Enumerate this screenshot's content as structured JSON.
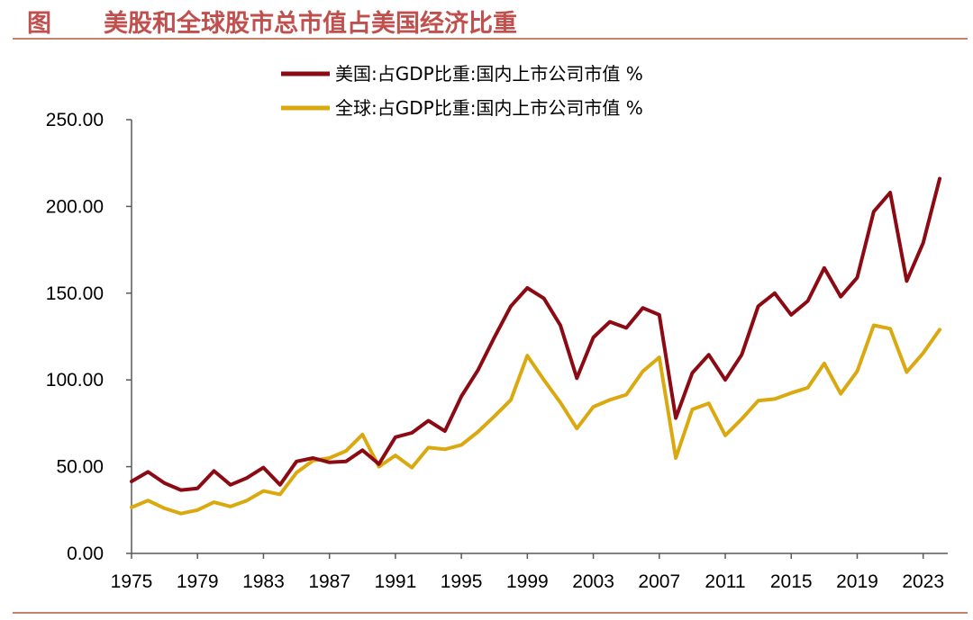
{
  "header": {
    "label": "图",
    "title": "美股和全球股市总市值占美国经济比重"
  },
  "colors": {
    "accent": "#c0504d",
    "us": "#8b0a14",
    "world": "#d9a90f",
    "axis": "#595959"
  },
  "chart_data": {
    "type": "line",
    "title": "美股和全球股市总市值占美国经济比重",
    "xlabel": "",
    "ylabel": "",
    "ylim": [
      0,
      250
    ],
    "xlim": [
      1975,
      2024
    ],
    "grid": false,
    "legend_position": "top-center",
    "yticks": [
      "0.00",
      "50.00",
      "100.00",
      "150.00",
      "200.00",
      "250.00"
    ],
    "xticks": [
      "1975",
      "1979",
      "1983",
      "1987",
      "1991",
      "1995",
      "1999",
      "2003",
      "2007",
      "2011",
      "2015",
      "2019",
      "2023"
    ],
    "x": [
      1975,
      1976,
      1977,
      1978,
      1979,
      1980,
      1981,
      1982,
      1983,
      1984,
      1985,
      1986,
      1987,
      1988,
      1989,
      1990,
      1991,
      1992,
      1993,
      1994,
      1995,
      1996,
      1997,
      1998,
      1999,
      2000,
      2001,
      2002,
      2003,
      2004,
      2005,
      2006,
      2007,
      2008,
      2009,
      2010,
      2011,
      2012,
      2013,
      2014,
      2015,
      2016,
      2017,
      2018,
      2019,
      2020,
      2021,
      2022,
      2023,
      2024
    ],
    "series": [
      {
        "name": "美国:占GDP比重:国内上市公司市值 %",
        "values": [
          41.5,
          47,
          40.5,
          36.5,
          37.5,
          47.5,
          39.5,
          43.5,
          49.5,
          39.5,
          53,
          55,
          52.5,
          53,
          59.5,
          51.5,
          67,
          69.5,
          76.5,
          70.5,
          90.5,
          105.5,
          124.5,
          142.5,
          153,
          147,
          131.5,
          101,
          124.5,
          133.5,
          130,
          141.5,
          137.5,
          78,
          104,
          114.5,
          100,
          114.5,
          142.5,
          150,
          137.5,
          145.5,
          164.5,
          148,
          159,
          197,
          208,
          157,
          179,
          216
        ]
      },
      {
        "name": "全球:占GDP比重:国内上市公司市值 %",
        "values": [
          26.5,
          30.5,
          26,
          23,
          25,
          29.5,
          27,
          30.5,
          36,
          34,
          46.5,
          53.5,
          55,
          59,
          68.5,
          50,
          56.5,
          49.5,
          61,
          60,
          62.5,
          70,
          79,
          88.5,
          114,
          100,
          87,
          72,
          84.5,
          88.5,
          91.5,
          105,
          113,
          55,
          83,
          86.5,
          68,
          77.5,
          88,
          89,
          92.5,
          95.5,
          109.5,
          92,
          105,
          131.5,
          129.5,
          104.5,
          115.5,
          129
        ]
      }
    ]
  }
}
